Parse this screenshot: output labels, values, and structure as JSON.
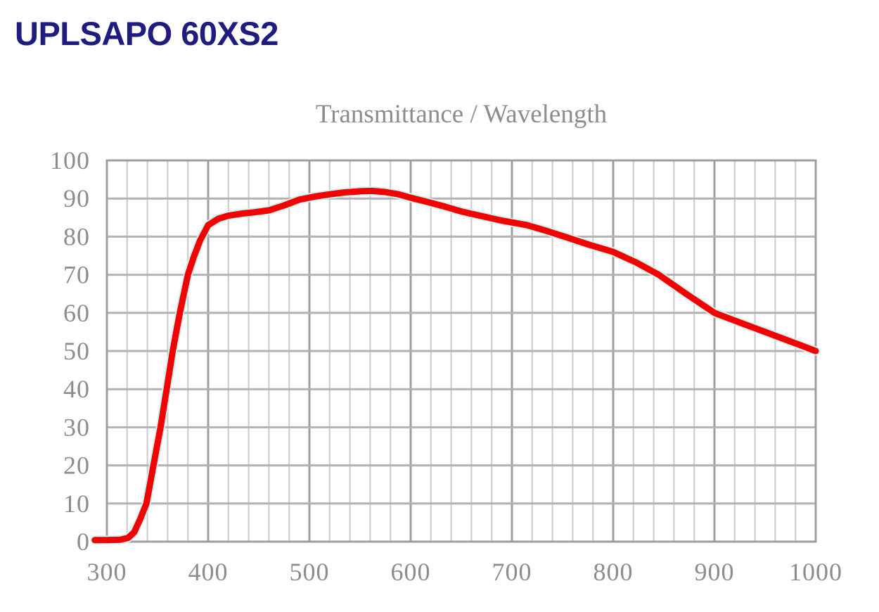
{
  "header": {
    "title": "UPLSAPO 60XS2"
  },
  "colors": {
    "header_title": "#1e1c7e",
    "curve": "#f50000",
    "axis_text": "#8c8c8c"
  },
  "chart_data": {
    "type": "line",
    "title": "Transmittance / Wavelength",
    "xlabel": "",
    "ylabel": "",
    "grid": "on",
    "legend": "none",
    "x_axis": {
      "min": 300,
      "max": 1000,
      "tick_step": 100,
      "minor_grid_step": 20,
      "tick_labels": [
        "300",
        "400",
        "500",
        "600",
        "700",
        "800",
        "900",
        "1000"
      ]
    },
    "y_axis": {
      "min": 0,
      "max": 100,
      "tick_step": 10,
      "tick_labels": [
        "0",
        "10",
        "20",
        "30",
        "40",
        "50",
        "60",
        "70",
        "80",
        "90",
        "100"
      ]
    },
    "series": [
      {
        "name": "Transmittance",
        "color": "#f50000",
        "points": [
          [
            288,
            0.4
          ],
          [
            300,
            0.4
          ],
          [
            313,
            0.5
          ],
          [
            321,
            1
          ],
          [
            327,
            2.5
          ],
          [
            333,
            6
          ],
          [
            339,
            10
          ],
          [
            346,
            20
          ],
          [
            353,
            30
          ],
          [
            359,
            40
          ],
          [
            365,
            50
          ],
          [
            372,
            60
          ],
          [
            380,
            70
          ],
          [
            386,
            74.8
          ],
          [
            392,
            79
          ],
          [
            400,
            83
          ],
          [
            410,
            84.7
          ],
          [
            420,
            85.5
          ],
          [
            432,
            86
          ],
          [
            446,
            86.4
          ],
          [
            460,
            86.9
          ],
          [
            475,
            88.2
          ],
          [
            490,
            89.7
          ],
          [
            505,
            90.5
          ],
          [
            520,
            91.1
          ],
          [
            535,
            91.6
          ],
          [
            550,
            91.9
          ],
          [
            562,
            92
          ],
          [
            575,
            91.7
          ],
          [
            588,
            91.1
          ],
          [
            600,
            90.2
          ],
          [
            615,
            89.2
          ],
          [
            632,
            88
          ],
          [
            650,
            86.6
          ],
          [
            670,
            85.4
          ],
          [
            690,
            84.2
          ],
          [
            715,
            83
          ],
          [
            733,
            81.6
          ],
          [
            752,
            80
          ],
          [
            776,
            77.9
          ],
          [
            800,
            76
          ],
          [
            823,
            73.2
          ],
          [
            845,
            70
          ],
          [
            872,
            65
          ],
          [
            900,
            60
          ],
          [
            925,
            57.5
          ],
          [
            950,
            55
          ],
          [
            975,
            52.5
          ],
          [
            1000,
            50
          ]
        ]
      }
    ]
  }
}
